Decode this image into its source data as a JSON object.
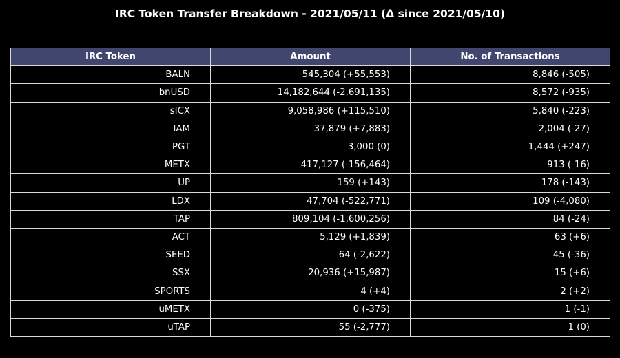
{
  "chart_data": {
    "type": "table",
    "title": "IRC Token Transfer Breakdown - 2021/05/11 (Δ since 2021/05/10)",
    "columns": [
      "IRC Token",
      "Amount",
      "No. of Transactions"
    ],
    "rows": [
      [
        "BALN",
        "545,304 (+55,553)",
        "8,846 (-505)"
      ],
      [
        "bnUSD",
        "14,182,644 (-2,691,135)",
        "8,572 (-935)"
      ],
      [
        "sICX",
        "9,058,986 (+115,510)",
        "5,840 (-223)"
      ],
      [
        "IAM",
        "37,879 (+7,883)",
        "2,004 (-27)"
      ],
      [
        "PGT",
        "3,000 (0)",
        "1,444 (+247)"
      ],
      [
        "METX",
        "417,127 (-156,464)",
        "913 (-16)"
      ],
      [
        "UP",
        "159 (+143)",
        "178 (-143)"
      ],
      [
        "LDX",
        "47,704 (-522,771)",
        "109 (-4,080)"
      ],
      [
        "TAP",
        "809,104 (-1,600,256)",
        "84 (-24)"
      ],
      [
        "ACT",
        "5,129 (+1,839)",
        "63 (+6)"
      ],
      [
        "SEED",
        "64 (-2,622)",
        "45 (-36)"
      ],
      [
        "SSX",
        "20,936 (+15,987)",
        "15 (+6)"
      ],
      [
        "SPORTS",
        "4 (+4)",
        "2 (+2)"
      ],
      [
        "uMETX",
        "0 (-375)",
        "1 (-1)"
      ],
      [
        "uTAP",
        "55 (-2,777)",
        "1 (0)"
      ]
    ],
    "colors": {
      "background": "#000000",
      "header_background": "#40466e",
      "grid_lines": "#d9d9d9",
      "text": "#ffffff"
    }
  }
}
